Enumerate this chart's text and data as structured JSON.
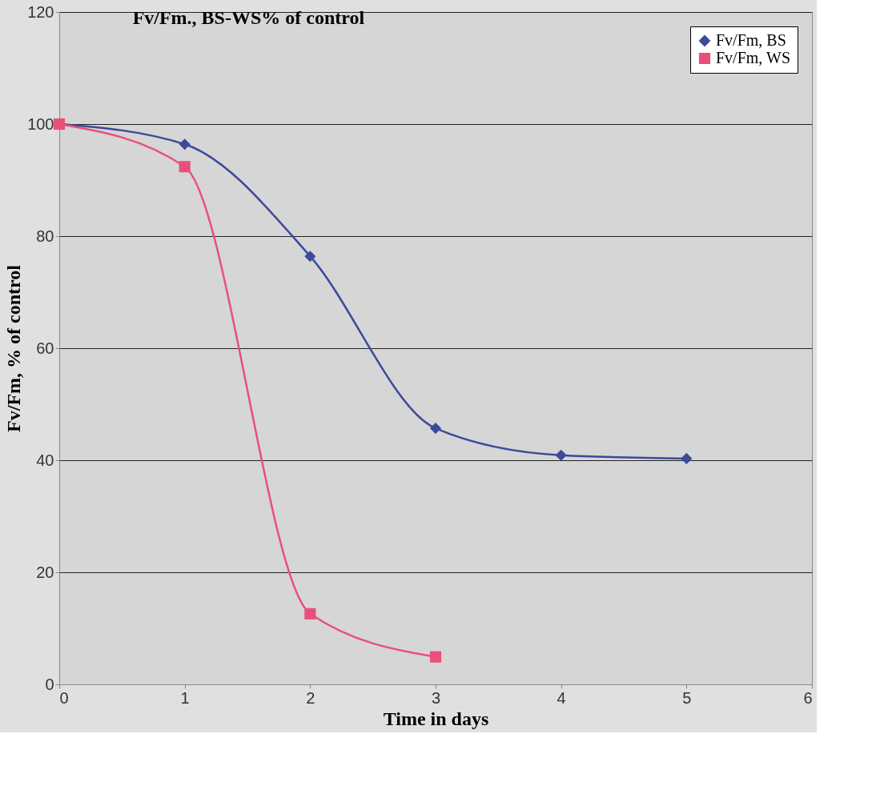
{
  "chart_data": {
    "type": "line",
    "title": "Fv/Fm., BS-WS% of control",
    "xlabel": "Time in days",
    "ylabel": "Fv/Fm, % of control",
    "series": [
      {
        "name": "Fv/Fm, BS",
        "color": "#3b4a9a",
        "marker": "diamond",
        "x": [
          0,
          1,
          2,
          3,
          4,
          5
        ],
        "values": [
          100,
          96.4,
          76.4,
          45.7,
          40.9,
          40.3
        ]
      },
      {
        "name": "Fv/Fm, WS",
        "color": "#e8507a",
        "marker": "square",
        "x": [
          0,
          1,
          2,
          3
        ],
        "values": [
          100,
          92.4,
          12.6,
          4.9
        ]
      }
    ],
    "xlim": [
      0,
      6
    ],
    "xticks": [
      0,
      1,
      2,
      3,
      4,
      5,
      6
    ],
    "ylim": [
      0,
      120
    ],
    "yticks": [
      0,
      20,
      40,
      60,
      80,
      100,
      120
    ],
    "grid": "y",
    "legend": "top right",
    "line_style": "solid"
  }
}
